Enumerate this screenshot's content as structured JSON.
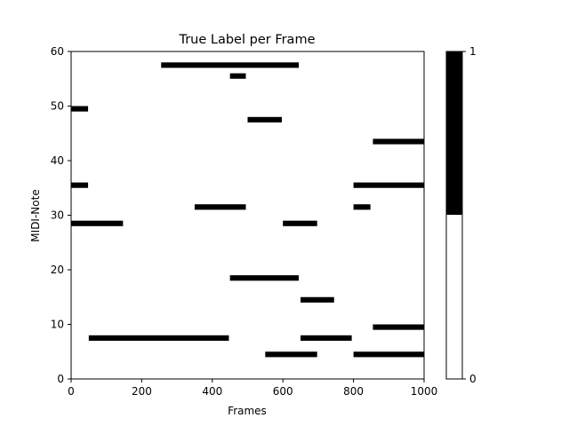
{
  "chart_data": {
    "type": "heatmap",
    "title": "True Label per Frame",
    "xlabel": "Frames",
    "ylabel": "MIDI-Note",
    "xlim": [
      0,
      1000
    ],
    "ylim": [
      0,
      60
    ],
    "x_ticks": [
      0,
      200,
      400,
      600,
      800,
      1000
    ],
    "y_ticks": [
      0,
      10,
      20,
      30,
      40,
      50,
      60
    ],
    "colormap": [
      "#ffffff",
      "#000000"
    ],
    "colorbar": {
      "ticks": [
        0,
        1
      ],
      "labels": [
        "0",
        "1"
      ]
    },
    "segments": [
      {
        "note": 57,
        "start": 255,
        "end": 645
      },
      {
        "note": 55,
        "start": 450,
        "end": 495
      },
      {
        "note": 49,
        "start": 0,
        "end": 48
      },
      {
        "note": 47,
        "start": 500,
        "end": 597
      },
      {
        "note": 43,
        "start": 855,
        "end": 1000
      },
      {
        "note": 35,
        "start": 0,
        "end": 48
      },
      {
        "note": 35,
        "start": 800,
        "end": 1000
      },
      {
        "note": 31,
        "start": 350,
        "end": 495
      },
      {
        "note": 31,
        "start": 800,
        "end": 848
      },
      {
        "note": 28,
        "start": 0,
        "end": 147
      },
      {
        "note": 28,
        "start": 600,
        "end": 697
      },
      {
        "note": 18,
        "start": 450,
        "end": 645
      },
      {
        "note": 14,
        "start": 650,
        "end": 745
      },
      {
        "note": 9,
        "start": 855,
        "end": 1000
      },
      {
        "note": 7,
        "start": 50,
        "end": 447
      },
      {
        "note": 7,
        "start": 650,
        "end": 795
      },
      {
        "note": 4,
        "start": 550,
        "end": 697
      },
      {
        "note": 4,
        "start": 800,
        "end": 1000
      }
    ]
  },
  "colors": {
    "on": "#000000",
    "off": "#ffffff",
    "axis": "#000000"
  }
}
